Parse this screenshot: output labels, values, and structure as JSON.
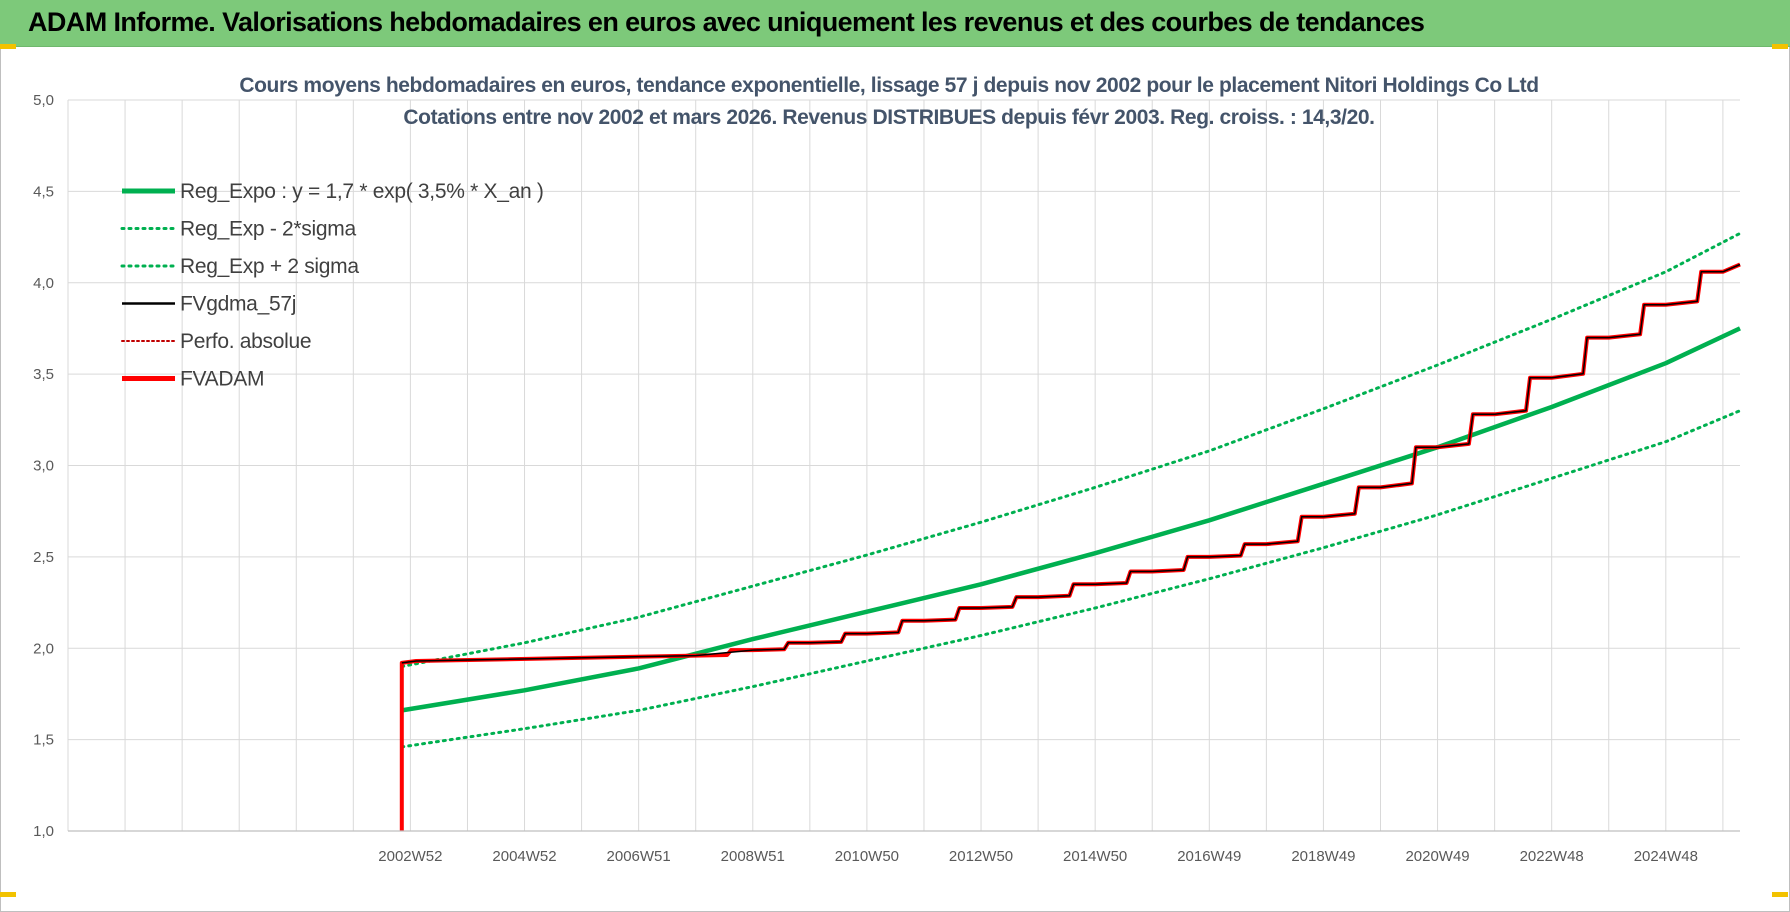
{
  "banner": {
    "title": "ADAM Informe. Valorisations hebdomadaires en euros avec uniquement les revenus et des courbes de tendances"
  },
  "colors": {
    "banner": "#7dc97a",
    "reg_green": "#00b050",
    "fvgdma_black": "#000000",
    "fvadam_red": "#ff0000",
    "perfo_red": "#c00000",
    "grid": "#d9d9d9"
  },
  "chart_data": {
    "type": "line",
    "title_line1": "Cours moyens hebdomadaires en euros, tendance exponentielle, lissage 57 j depuis nov 2002 pour le placement Nitori Holdings Co Ltd",
    "title_line2": "Cotations entre nov 2002 et mars 2026. Revenus DISTRIBUES depuis févr 2003. Reg. croiss. : 14,3/20.",
    "xlabel": "",
    "ylabel": "",
    "ylim": [
      1.0,
      5.0
    ],
    "xlim": [
      1997.0,
      2026.3
    ],
    "yticks": [
      "1,0",
      "1,5",
      "2,0",
      "2,5",
      "3,0",
      "3,5",
      "4,0",
      "4,5",
      "5,0"
    ],
    "xtick_labels": [
      {
        "label": "2002W52",
        "x": 2003.0
      },
      {
        "label": "2004W52",
        "x": 2005.0
      },
      {
        "label": "2006W51",
        "x": 2007.0
      },
      {
        "label": "2008W51",
        "x": 2009.0
      },
      {
        "label": "2010W50",
        "x": 2011.0
      },
      {
        "label": "2012W50",
        "x": 2013.0
      },
      {
        "label": "2014W50",
        "x": 2015.0
      },
      {
        "label": "2016W49",
        "x": 2017.0
      },
      {
        "label": "2018W49",
        "x": 2019.0
      },
      {
        "label": "2020W49",
        "x": 2021.0
      },
      {
        "label": "2022W48",
        "x": 2023.0
      },
      {
        "label": "2024W48",
        "x": 2025.0
      }
    ],
    "grid": true,
    "legend_position": "top-left",
    "legend": [
      {
        "label": "Reg_Expo : y = 1,7 * exp( 3,5% *  X_an )",
        "style": "solid-thick",
        "color": "#00b050"
      },
      {
        "label": "Reg_Exp - 2*sigma",
        "style": "dotted",
        "color": "#00b050"
      },
      {
        "label": "Reg_Exp + 2 sigma",
        "style": "dotted",
        "color": "#00b050"
      },
      {
        "label": "FVgdma_57j",
        "style": "solid-thin",
        "color": "#000000"
      },
      {
        "label": "Perfo. absolue",
        "style": "dotted",
        "color": "#c00000"
      },
      {
        "label": "FVADAM",
        "style": "solid-thick",
        "color": "#ff0000"
      }
    ],
    "series": [
      {
        "name": "Reg_Expo : y = 1,7 * exp( 3,5% *  X_an )",
        "x": [
          2002.85,
          2005,
          2007,
          2009,
          2011,
          2013,
          2015,
          2017,
          2019,
          2021,
          2023,
          2025,
          2026.3
        ],
        "y": [
          1.66,
          1.77,
          1.89,
          2.05,
          2.2,
          2.35,
          2.52,
          2.7,
          2.9,
          3.1,
          3.32,
          3.56,
          3.75
        ]
      },
      {
        "name": "Reg_Exp - 2*sigma",
        "x": [
          2002.85,
          2005,
          2007,
          2009,
          2011,
          2013,
          2015,
          2017,
          2019,
          2021,
          2023,
          2025,
          2026.3
        ],
        "y": [
          1.46,
          1.56,
          1.66,
          1.79,
          1.93,
          2.07,
          2.22,
          2.38,
          2.55,
          2.73,
          2.93,
          3.13,
          3.3
        ]
      },
      {
        "name": "Reg_Exp + 2 sigma",
        "x": [
          2002.85,
          2005,
          2007,
          2009,
          2011,
          2013,
          2015,
          2017,
          2019,
          2021,
          2023,
          2025,
          2026.3
        ],
        "y": [
          1.9,
          2.03,
          2.17,
          2.34,
          2.51,
          2.69,
          2.88,
          3.08,
          3.31,
          3.55,
          3.8,
          4.06,
          4.27
        ]
      },
      {
        "name": "FVADAM",
        "x": [
          2002.85,
          2002.85,
          2003.1,
          2008.0,
          2009.0,
          2010.0,
          2011.0,
          2012.0,
          2013.0,
          2014.0,
          2015.0,
          2016.0,
          2017.0,
          2018.0,
          2019.0,
          2020.0,
          2021.0,
          2022.0,
          2023.0,
          2024.0,
          2025.0,
          2026.0,
          2026.3
        ],
        "y": [
          1.0,
          1.92,
          1.93,
          1.96,
          1.99,
          2.03,
          2.08,
          2.15,
          2.22,
          2.28,
          2.35,
          2.42,
          2.5,
          2.57,
          2.72,
          2.88,
          3.1,
          3.28,
          3.48,
          3.7,
          3.88,
          4.06,
          4.1
        ]
      },
      {
        "name": "FVgdma_57j",
        "x": [
          2002.85,
          2003.1,
          2008.0,
          2009.0,
          2010.0,
          2011.0,
          2012.0,
          2013.0,
          2014.0,
          2015.0,
          2016.0,
          2017.0,
          2018.0,
          2019.0,
          2020.0,
          2021.0,
          2022.0,
          2023.0,
          2024.0,
          2025.0,
          2026.0,
          2026.3
        ],
        "y": [
          1.92,
          1.93,
          1.96,
          1.99,
          2.03,
          2.08,
          2.15,
          2.22,
          2.28,
          2.35,
          2.42,
          2.5,
          2.57,
          2.72,
          2.88,
          3.1,
          3.28,
          3.48,
          3.7,
          3.88,
          4.06,
          4.1
        ]
      },
      {
        "name": "Perfo. absolue",
        "x": [
          2002.85,
          2003.1,
          2008.0,
          2012.0,
          2016.0,
          2020.0,
          2024.0,
          2026.3
        ],
        "y": [
          1.92,
          1.93,
          1.96,
          2.15,
          2.42,
          2.88,
          3.7,
          4.1
        ]
      }
    ]
  }
}
